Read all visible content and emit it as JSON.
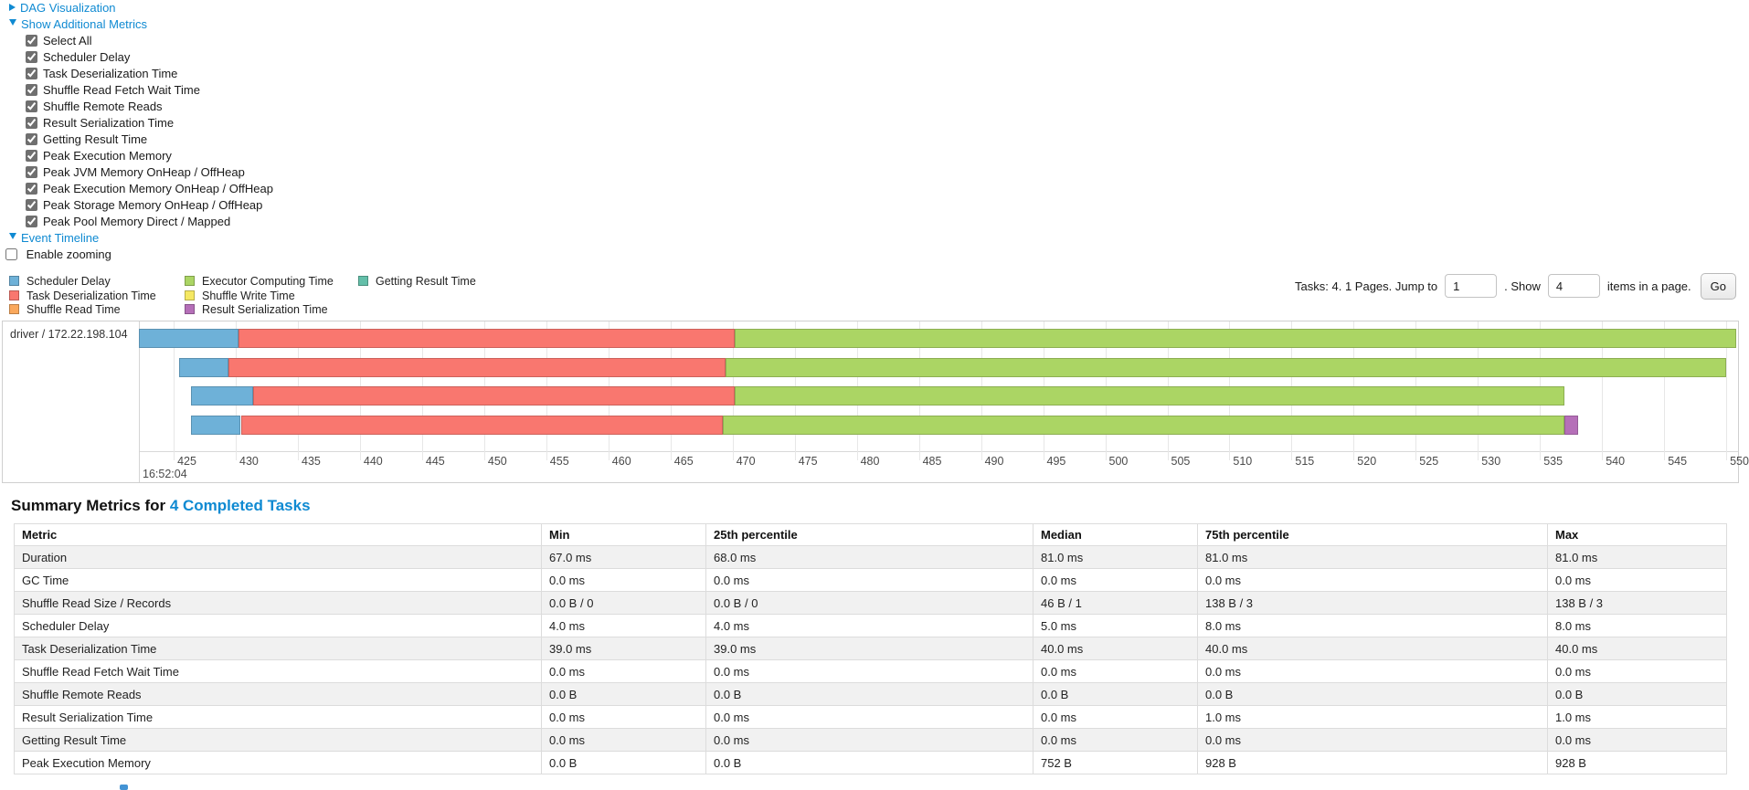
{
  "top": {
    "dag": {
      "label": "DAG Visualization"
    },
    "metrics_toggle": "Show Additional Metrics",
    "metric_checkboxes": [
      {
        "label": "Select All",
        "checked": true
      },
      {
        "label": "Scheduler Delay",
        "checked": true
      },
      {
        "label": "Task Deserialization Time",
        "checked": true
      },
      {
        "label": "Shuffle Read Fetch Wait Time",
        "checked": true
      },
      {
        "label": "Shuffle Remote Reads",
        "checked": true
      },
      {
        "label": "Result Serialization Time",
        "checked": true
      },
      {
        "label": "Getting Result Time",
        "checked": true
      },
      {
        "label": "Peak Execution Memory",
        "checked": true
      },
      {
        "label": "Peak JVM Memory OnHeap / OffHeap",
        "checked": true
      },
      {
        "label": "Peak Execution Memory OnHeap / OffHeap",
        "checked": true
      },
      {
        "label": "Peak Storage Memory OnHeap / OffHeap",
        "checked": true
      },
      {
        "label": "Peak Pool Memory Direct / Mapped",
        "checked": true
      }
    ],
    "timeline_toggle": "Event Timeline",
    "enable_zooming": {
      "label": "Enable zooming",
      "checked": false
    }
  },
  "colors": {
    "link": "#0f8ad2",
    "scheduler_delay": "#6EB1D8",
    "task_deserialization": "#F9776F",
    "shuffle_read": "#FAA85C",
    "executor_computing": "#ABD564",
    "shuffle_write": "#F5E862",
    "result_serialization": "#B56FB8",
    "getting_result": "#63BFA9"
  },
  "pagination": {
    "tasks_text": "Tasks: 4. 1 Pages. Jump to",
    "jump_value": "1",
    "show_text": ". Show",
    "show_value": "4",
    "suffix_text": "items in a page.",
    "go_label": "Go"
  },
  "chart_data": {
    "type": "timeline",
    "row_label": "driver / 172.22.198.104",
    "legend_columns": [
      [
        {
          "label": "Scheduler Delay",
          "color_key": "scheduler_delay"
        },
        {
          "label": "Task Deserialization Time",
          "color_key": "task_deserialization"
        },
        {
          "label": "Shuffle Read Time",
          "color_key": "shuffle_read"
        }
      ],
      [
        {
          "label": "Executor Computing Time",
          "color_key": "executor_computing"
        },
        {
          "label": "Shuffle Write Time",
          "color_key": "shuffle_write"
        },
        {
          "label": "Result Serialization Time",
          "color_key": "result_serialization"
        }
      ],
      [
        {
          "label": "Getting Result Time",
          "color_key": "getting_result"
        }
      ]
    ],
    "x_axis": {
      "unit": "ms",
      "major_label": "16:52:04",
      "tick_start": 425,
      "tick_end": 550,
      "tick_step": 5,
      "window_start": 422.2,
      "window_end": 550.8
    },
    "tasks": [
      {
        "segments": [
          {
            "key": "scheduler_delay",
            "start": 422.2,
            "end": 430.2
          },
          {
            "key": "task_deserialization",
            "start": 430.2,
            "end": 470.2
          },
          {
            "key": "executor_computing",
            "start": 470.2,
            "end": 551.2
          }
        ]
      },
      {
        "segments": [
          {
            "key": "scheduler_delay",
            "start": 425.4,
            "end": 429.4
          },
          {
            "key": "task_deserialization",
            "start": 429.4,
            "end": 469.4
          },
          {
            "key": "executor_computing",
            "start": 469.4,
            "end": 550.0
          }
        ]
      },
      {
        "segments": [
          {
            "key": "scheduler_delay",
            "start": 426.4,
            "end": 431.4
          },
          {
            "key": "task_deserialization",
            "start": 431.4,
            "end": 470.2
          },
          {
            "key": "executor_computing",
            "start": 470.2,
            "end": 537.0
          }
        ]
      },
      {
        "segments": [
          {
            "key": "scheduler_delay",
            "start": 426.4,
            "end": 430.4
          },
          {
            "key": "task_deserialization",
            "start": 430.4,
            "end": 469.2
          },
          {
            "key": "executor_computing",
            "start": 469.2,
            "end": 537.0
          },
          {
            "key": "result_serialization",
            "start": 537.0,
            "end": 538.1
          }
        ]
      }
    ]
  },
  "summary": {
    "title_prefix": "Summary Metrics for ",
    "title_link": "4 Completed Tasks",
    "table": {
      "headers": [
        "Metric",
        "Min",
        "25th percentile",
        "Median",
        "75th percentile",
        "Max"
      ],
      "rows": [
        [
          "Duration",
          "67.0 ms",
          "68.0 ms",
          "81.0 ms",
          "81.0 ms",
          "81.0 ms"
        ],
        [
          "GC Time",
          "0.0 ms",
          "0.0 ms",
          "0.0 ms",
          "0.0 ms",
          "0.0 ms"
        ],
        [
          "Shuffle Read Size / Records",
          "0.0 B / 0",
          "0.0 B / 0",
          "46 B / 1",
          "138 B / 3",
          "138 B / 3"
        ],
        [
          "Scheduler Delay",
          "4.0 ms",
          "4.0 ms",
          "5.0 ms",
          "8.0 ms",
          "8.0 ms"
        ],
        [
          "Task Deserialization Time",
          "39.0 ms",
          "39.0 ms",
          "40.0 ms",
          "40.0 ms",
          "40.0 ms"
        ],
        [
          "Shuffle Read Fetch Wait Time",
          "0.0 ms",
          "0.0 ms",
          "0.0 ms",
          "0.0 ms",
          "0.0 ms"
        ],
        [
          "Shuffle Remote Reads",
          "0.0 B",
          "0.0 B",
          "0.0 B",
          "0.0 B",
          "0.0 B"
        ],
        [
          "Result Serialization Time",
          "0.0 ms",
          "0.0 ms",
          "0.0 ms",
          "1.0 ms",
          "1.0 ms"
        ],
        [
          "Getting Result Time",
          "0.0 ms",
          "0.0 ms",
          "0.0 ms",
          "0.0 ms",
          "0.0 ms"
        ],
        [
          "Peak Execution Memory",
          "0.0 B",
          "0.0 B",
          "752 B",
          "928 B",
          "928 B"
        ]
      ]
    }
  }
}
